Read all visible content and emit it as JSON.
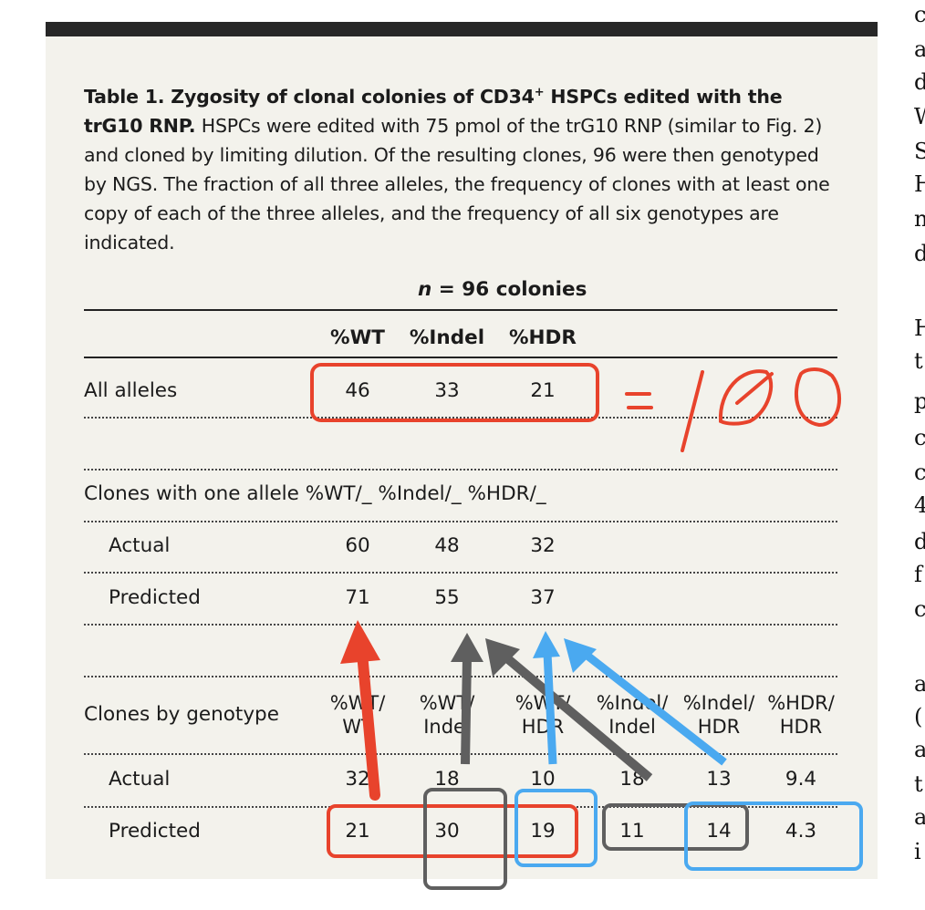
{
  "caption": {
    "title_pre": "Table 1. Zygosity of clonal colonies of CD34",
    "title_sup": "+",
    "title_post": " HSPCs edited with the trG10 RNP.",
    "body": "HSPCs were edited with 75 pmol of the trG10 RNP (similar to Fig. 2) and cloned by limiting dilution. Of the resulting clones, 96 were then genotyped by NGS. The fraction of all three alleles, the frequency of clones with at least one copy of each of the three alleles, and the frequency of all six genotypes are indicated."
  },
  "table": {
    "n_label": "n",
    "n_text": " = 96 colonies",
    "headers": [
      "%WT",
      "%Indel",
      "%HDR"
    ],
    "all_alleles": {
      "label": "All alleles",
      "values": [
        "46",
        "33",
        "21"
      ]
    },
    "one_allele": {
      "label": "Clones with one allele",
      "cols": [
        "%WT/_",
        "%Indel/_",
        "%HDR/_"
      ],
      "actual_label": "Actual",
      "actual": [
        "60",
        "48",
        "32"
      ],
      "predicted_label": "Predicted",
      "predicted": [
        "71",
        "55",
        "37"
      ]
    },
    "genotype": {
      "label": "Clones by genotype",
      "cols": [
        {
          "top": "%WT/",
          "bottom": "WT"
        },
        {
          "top": "%WT/",
          "bottom": "Indel"
        },
        {
          "top": "%WT/",
          "bottom": "HDR"
        },
        {
          "top": "%Indel/",
          "bottom": "Indel"
        },
        {
          "top": "%Indel/",
          "bottom": "HDR"
        },
        {
          "top": "%HDR/",
          "bottom": "HDR"
        }
      ],
      "actual_label": "Actual",
      "actual": [
        "32",
        "18",
        "10",
        "18",
        "13",
        "9.4"
      ],
      "predicted_label": "Predicted",
      "predicted": [
        "21",
        "30",
        "19",
        "11",
        "14",
        "4.3"
      ]
    }
  },
  "annotation": {
    "handwritten": "= 100"
  },
  "side_text": [
    "c",
    "a",
    "d",
    "W",
    "S",
    "H",
    "n",
    "d",
    "",
    "H",
    "t",
    "p",
    "c",
    "c",
    "4",
    "d",
    "f",
    "c",
    "",
    "a",
    "(",
    "a",
    "t",
    "a",
    "i"
  ],
  "colors": {
    "red": "#e8432c",
    "gray": "#5f5f5f",
    "blue": "#4aa9f0",
    "panel": "#f3f2ec",
    "bar": "#272727"
  }
}
